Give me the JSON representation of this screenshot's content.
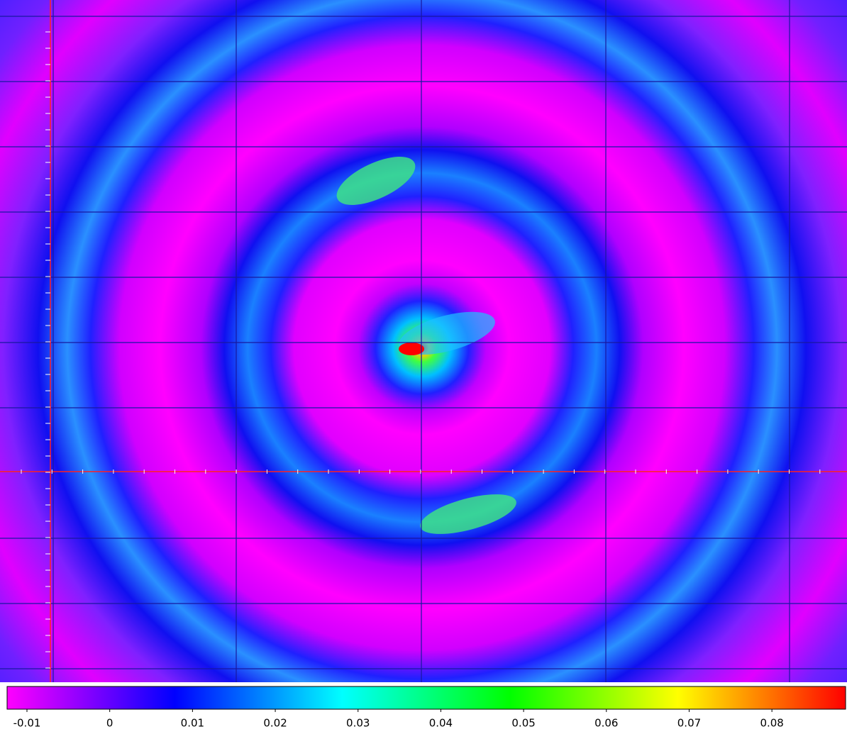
{
  "chart_data": {
    "type": "image",
    "colorbar": {
      "lim": [
        -0.0124,
        0.0889
      ],
      "ticks": [
        -0.01,
        0,
        0.01,
        0.02,
        0.03,
        0.04,
        0.05,
        0.06,
        0.07,
        0.08
      ],
      "colormap": [
        "#ff00ff",
        "#8000ff",
        "#0000ff",
        "#0080ff",
        "#00ffff",
        "#00ff80",
        "#00ff00",
        "#80ff00",
        "#ffff00",
        "#ff8000",
        "#ff0000"
      ]
    }
  }
}
